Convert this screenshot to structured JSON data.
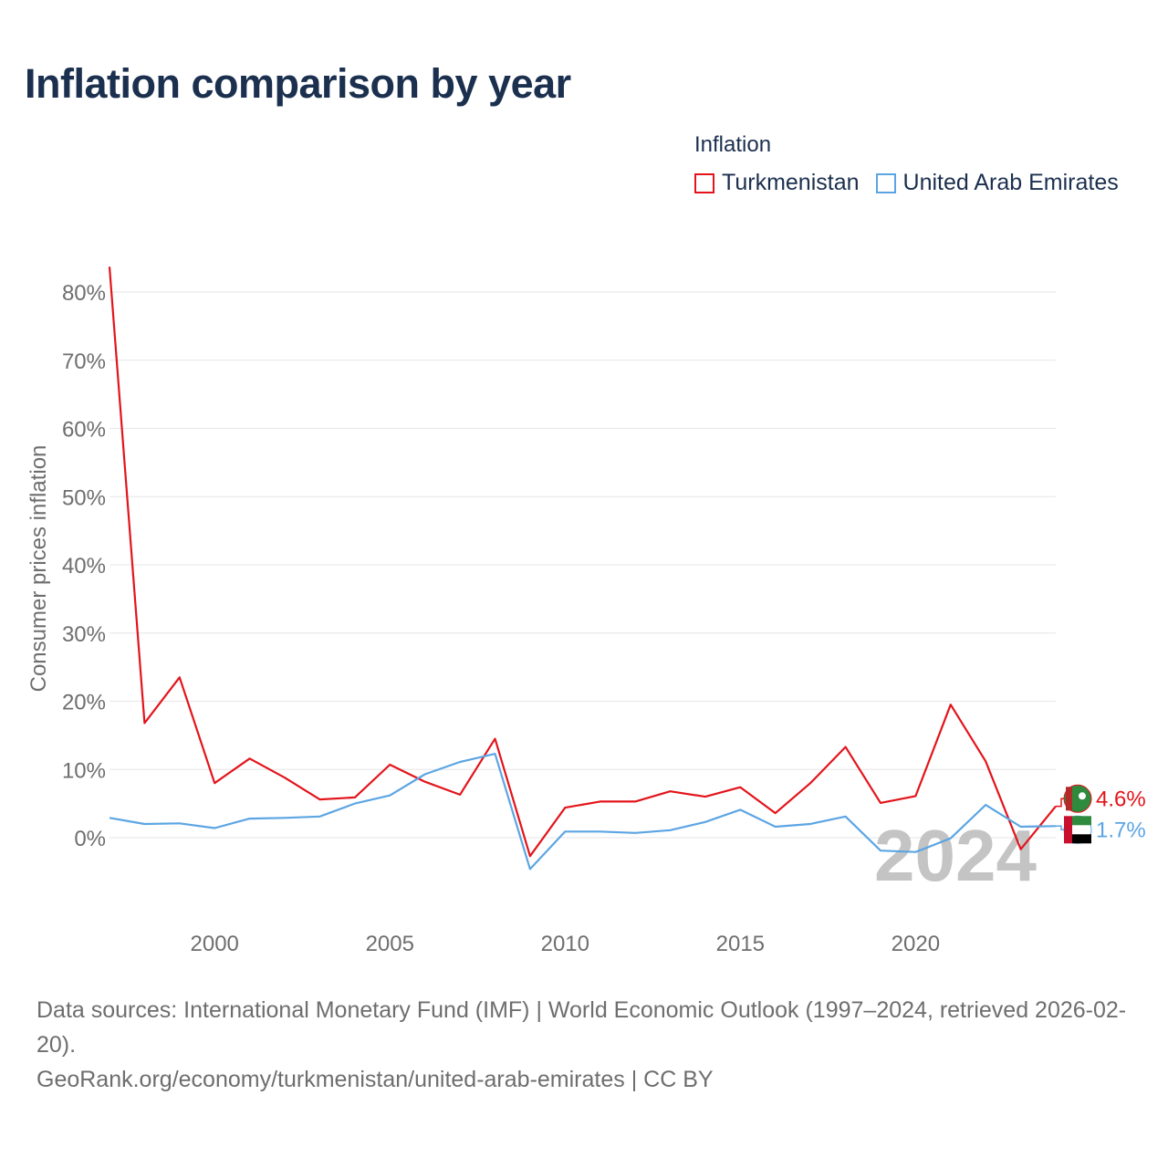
{
  "title": "Inflation comparison by year",
  "legend": {
    "title": "Inflation",
    "items": [
      {
        "label": "Turkmenistan",
        "color": "#e3141b"
      },
      {
        "label": "United Arab Emirates",
        "color": "#5ca5e3"
      }
    ]
  },
  "chart_data": {
    "type": "line",
    "title": "Inflation comparison by year",
    "xlabel": "",
    "ylabel": "Consumer prices inflation",
    "xlim": [
      1997,
      2024
    ],
    "ylim": [
      -10,
      84
    ],
    "yticks": [
      0,
      10,
      20,
      30,
      40,
      50,
      60,
      70,
      80
    ],
    "ytick_labels": [
      "0%",
      "10%",
      "20%",
      "30%",
      "40%",
      "50%",
      "60%",
      "70%",
      "80%"
    ],
    "xticks": [
      2000,
      2005,
      2010,
      2015,
      2020
    ],
    "xtick_labels": [
      "2000",
      "2005",
      "2010",
      "2015",
      "2020"
    ],
    "x": [
      1997,
      1998,
      1999,
      2000,
      2001,
      2002,
      2003,
      2004,
      2005,
      2006,
      2007,
      2008,
      2009,
      2010,
      2011,
      2012,
      2013,
      2014,
      2015,
      2016,
      2017,
      2018,
      2019,
      2020,
      2021,
      2022,
      2023,
      2024
    ],
    "series": [
      {
        "name": "Turkmenistan",
        "color": "#e3141b",
        "values": [
          83.7,
          16.8,
          23.5,
          8.0,
          11.6,
          8.8,
          5.6,
          5.9,
          10.7,
          8.2,
          6.3,
          14.5,
          -2.7,
          4.4,
          5.3,
          5.3,
          6.8,
          6.0,
          7.4,
          3.6,
          8.0,
          13.3,
          5.1,
          6.1,
          19.5,
          11.2,
          -1.7,
          4.6
        ],
        "end_label": "4.6%"
      },
      {
        "name": "United Arab Emirates",
        "color": "#5ca5e3",
        "values": [
          2.9,
          2.0,
          2.1,
          1.4,
          2.8,
          2.9,
          3.1,
          5.0,
          6.2,
          9.3,
          11.1,
          12.3,
          -4.6,
          0.9,
          0.9,
          0.7,
          1.1,
          2.3,
          4.1,
          1.6,
          2.0,
          3.1,
          -1.9,
          -2.1,
          -0.1,
          4.8,
          1.6,
          1.7
        ],
        "end_label": "1.7%"
      }
    ],
    "year_watermark": "2024",
    "grid": true
  },
  "footer": {
    "sources": "Data sources: International Monetary Fund (IMF) | World Economic Outlook (1997–2024, retrieved 2026-02-20).",
    "credit": "GeoRank.org/economy/turkmenistan/united-arab-emirates | CC BY"
  }
}
